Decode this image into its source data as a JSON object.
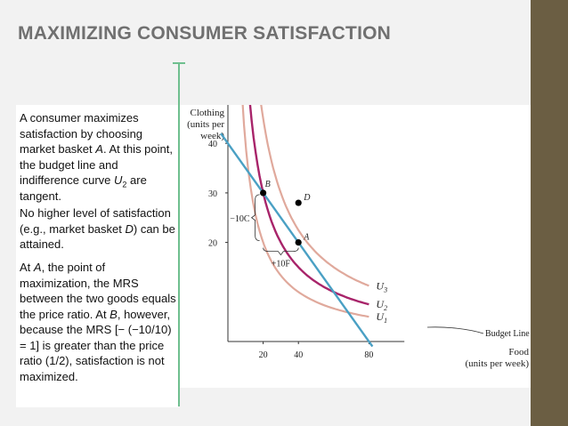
{
  "slide": {
    "title": "MAXIMIZING CONSUMER SATISFACTION",
    "paragraph1": {
      "t1": "A consumer maximizes satisfaction by choosing market basket ",
      "a": "A",
      "t2": ". At this point, the budget line and indifference curve ",
      "u": "U",
      "sub": "2",
      "t3": " are tangent."
    },
    "paragraph2": {
      "t1": "No higher level of satisfaction (e.g., market basket ",
      "d": "D",
      "t2": ") can be attained."
    },
    "paragraph3": {
      "t1": "At ",
      "a": "A",
      "t2": ", the point of maximization, the MRS between the two goods equals the price ratio. At ",
      "b": "B",
      "t3": ", however, because the MRS [− (−10/10) = 1] is greater than the price ratio (1/2), satisfaction is not maximized."
    },
    "colors": {
      "accent_line": "#6fbf8f",
      "sidebar": "#6b5e43",
      "title": "#707070"
    }
  },
  "chart_data": {
    "type": "line",
    "xlabel": "Food (units per week)",
    "ylabel": "Clothing (units per week)",
    "ylabel_lines": [
      "Clothing",
      "(units per",
      "week)"
    ],
    "xlabel_lines": [
      "Food",
      "(units per week)"
    ],
    "xlim": [
      0,
      90
    ],
    "ylim": [
      0,
      50
    ],
    "x_ticks": [
      20,
      40,
      80
    ],
    "y_ticks": [
      20,
      30,
      40
    ],
    "budget_line": {
      "name": "Budget Line",
      "points": [
        [
          0,
          40
        ],
        [
          80,
          0
        ]
      ],
      "color": "#4aa0c4"
    },
    "curves": [
      {
        "name": "U",
        "sub": "1",
        "k": 400,
        "x_range": [
          4.1,
          80
        ],
        "color": "#e0a99c",
        "width": 2.2
      },
      {
        "name": "U",
        "sub": "2",
        "k": 600,
        "x_range": [
          12.3,
          80
        ],
        "color": "#a8246a",
        "width": 2.4
      },
      {
        "name": "U",
        "sub": "3",
        "k": 900,
        "x_range": [
          18.5,
          80
        ],
        "color": "#e0a99c",
        "width": 2.2
      }
    ],
    "points": [
      {
        "label": "B",
        "x": 20,
        "y": 30
      },
      {
        "label": "A",
        "x": 40,
        "y": 20
      },
      {
        "label": "D",
        "x": 40,
        "y": 28
      }
    ],
    "annotations": {
      "clothing_change": "−10C",
      "food_change": "+10F"
    }
  }
}
